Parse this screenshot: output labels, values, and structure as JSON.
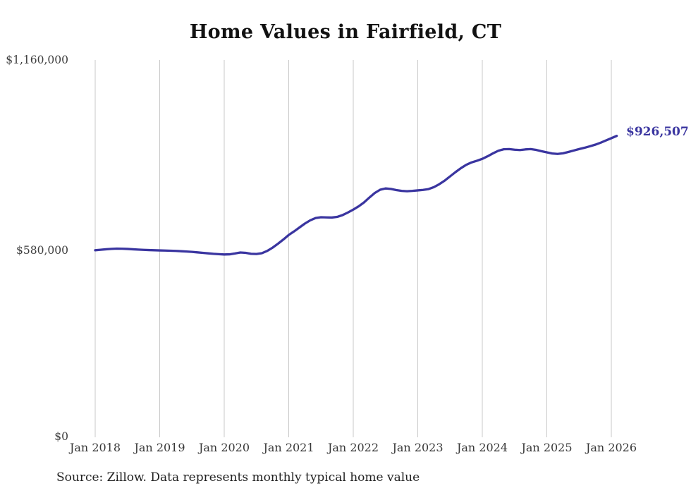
{
  "title": "Home Values in Fairfield, CT",
  "source_note": "Source: Zillow. Data represents monthly typical home value",
  "end_label": "$926,507",
  "colors": {
    "line": "#3a35a0",
    "gridline": "#c9c9c9",
    "title_text": "#121212",
    "axis_text": "#3d3d3d",
    "background": "#ffffff"
  },
  "chart_data": {
    "type": "line",
    "title": "Home Values in Fairfield, CT",
    "series_name": "Typical home value (monthly)",
    "x_start": "2018-01",
    "x_end": "2026-02",
    "frequency": "monthly",
    "x_tick_labels": [
      "Jan 2018",
      "Jan 2019",
      "Jan 2020",
      "Jan 2021",
      "Jan 2022",
      "Jan 2023",
      "Jan 2024",
      "Jan 2025",
      "Jan 2026"
    ],
    "y_tick_labels": [
      "$0",
      "$580,000",
      "$1,160,000"
    ],
    "y_ticks": [
      0,
      580000,
      1160000
    ],
    "ylim": [
      0,
      1160000
    ],
    "grid": "vertical-only",
    "legend": "none",
    "last_value": 926507,
    "last_value_label": "$926,507",
    "values": [
      575000,
      576500,
      578000,
      579200,
      580000,
      579800,
      579000,
      578000,
      577000,
      576200,
      575500,
      575000,
      574500,
      574000,
      573500,
      573000,
      572000,
      571000,
      570000,
      568500,
      567000,
      565500,
      564000,
      563000,
      562000,
      562500,
      565000,
      568000,
      567000,
      564000,
      563500,
      566000,
      573000,
      583000,
      595000,
      608000,
      622000,
      633000,
      645000,
      657000,
      667000,
      674000,
      676500,
      676000,
      675500,
      677500,
      683000,
      691000,
      700000,
      710000,
      722000,
      737000,
      751000,
      761000,
      765000,
      763500,
      760000,
      757500,
      756500,
      757500,
      759000,
      760500,
      763000,
      769000,
      778000,
      789000,
      802000,
      815000,
      827000,
      837500,
      845000,
      850000,
      856000,
      864000,
      873000,
      881000,
      885500,
      886000,
      884000,
      883000,
      885000,
      886000,
      883500,
      879500,
      876000,
      872500,
      871000,
      873000,
      877000,
      881500,
      886000,
      890000,
      894500,
      899500,
      905500,
      912500,
      919500,
      926507
    ]
  }
}
